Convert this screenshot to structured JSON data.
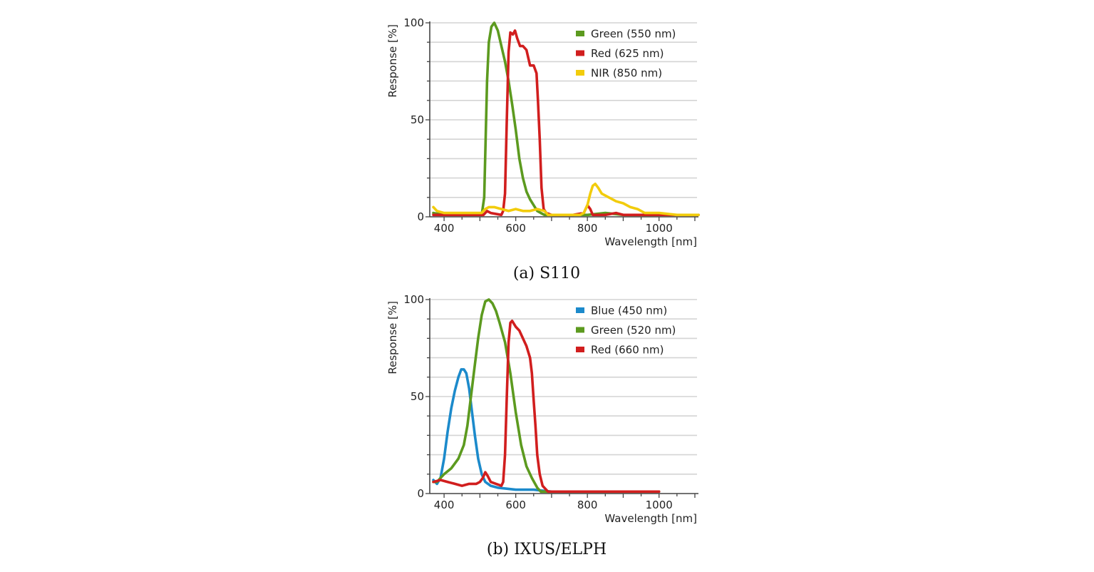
{
  "chart_data": [
    {
      "type": "line",
      "caption": "(a)  S110",
      "xlabel": "Wavelength [nm]",
      "ylabel": "Response [%]",
      "xlim": [
        360,
        1110
      ],
      "ylim": [
        0,
        100
      ],
      "xticks": [
        400,
        600,
        800,
        1000
      ],
      "yticks": [
        0,
        50,
        100
      ],
      "legend_position": "top-right",
      "grid": "horizontal",
      "series": [
        {
          "name": "Green (550 nm)",
          "color": "#5c9a1f",
          "points": [
            [
              370,
              2
            ],
            [
              400,
              1
            ],
            [
              450,
              1
            ],
            [
              490,
              1
            ],
            [
              505,
              1
            ],
            [
              512,
              10
            ],
            [
              516,
              40
            ],
            [
              520,
              70
            ],
            [
              525,
              90
            ],
            [
              532,
              98
            ],
            [
              540,
              100
            ],
            [
              550,
              96
            ],
            [
              560,
              88
            ],
            [
              570,
              80
            ],
            [
              580,
              70
            ],
            [
              590,
              58
            ],
            [
              600,
              45
            ],
            [
              610,
              30
            ],
            [
              620,
              20
            ],
            [
              630,
              13
            ],
            [
              640,
              9
            ],
            [
              650,
              6
            ],
            [
              660,
              3
            ],
            [
              670,
              2
            ],
            [
              680,
              1
            ],
            [
              700,
              1
            ],
            [
              750,
              1
            ],
            [
              800,
              1
            ],
            [
              850,
              2
            ],
            [
              900,
              1
            ],
            [
              950,
              1
            ],
            [
              1000,
              1
            ],
            [
              1050,
              1
            ],
            [
              1110,
              1
            ]
          ]
        },
        {
          "name": "Red (625 nm)",
          "color": "#d11e1e",
          "points": [
            [
              370,
              1
            ],
            [
              480,
              1
            ],
            [
              510,
              1
            ],
            [
              520,
              3
            ],
            [
              530,
              2
            ],
            [
              560,
              1
            ],
            [
              565,
              3
            ],
            [
              570,
              12
            ],
            [
              575,
              50
            ],
            [
              580,
              85
            ],
            [
              585,
              95
            ],
            [
              592,
              94
            ],
            [
              598,
              96
            ],
            [
              604,
              92
            ],
            [
              612,
              88
            ],
            [
              620,
              88
            ],
            [
              630,
              86
            ],
            [
              640,
              78
            ],
            [
              650,
              78
            ],
            [
              658,
              74
            ],
            [
              662,
              60
            ],
            [
              667,
              40
            ],
            [
              672,
              15
            ],
            [
              678,
              4
            ],
            [
              685,
              2
            ],
            [
              700,
              1
            ],
            [
              760,
              1
            ],
            [
              790,
              2
            ],
            [
              800,
              6
            ],
            [
              808,
              4
            ],
            [
              815,
              1
            ],
            [
              850,
              1
            ],
            [
              880,
              2
            ],
            [
              900,
              1
            ],
            [
              1000,
              1
            ],
            [
              1110,
              1
            ]
          ]
        },
        {
          "name": "NIR (850 nm)",
          "color": "#f2cc0c",
          "points": [
            [
              370,
              5
            ],
            [
              380,
              3
            ],
            [
              400,
              2
            ],
            [
              450,
              2
            ],
            [
              490,
              2
            ],
            [
              505,
              2
            ],
            [
              515,
              4
            ],
            [
              525,
              5
            ],
            [
              540,
              5
            ],
            [
              560,
              4
            ],
            [
              580,
              3
            ],
            [
              600,
              4
            ],
            [
              620,
              3
            ],
            [
              640,
              3
            ],
            [
              660,
              4
            ],
            [
              680,
              3
            ],
            [
              690,
              1
            ],
            [
              720,
              1
            ],
            [
              780,
              1
            ],
            [
              790,
              2
            ],
            [
              800,
              6
            ],
            [
              808,
              12
            ],
            [
              815,
              16
            ],
            [
              822,
              17
            ],
            [
              830,
              15
            ],
            [
              840,
              12
            ],
            [
              860,
              10
            ],
            [
              880,
              8
            ],
            [
              900,
              7
            ],
            [
              920,
              5
            ],
            [
              940,
              4
            ],
            [
              960,
              2
            ],
            [
              1000,
              2
            ],
            [
              1050,
              1
            ],
            [
              1110,
              1
            ]
          ]
        }
      ]
    },
    {
      "type": "line",
      "caption": "(b)  IXUS/ELPH",
      "xlabel": "Wavelength [nm]",
      "ylabel": "Response [%]",
      "xlim": [
        360,
        1110
      ],
      "ylim": [
        0,
        100
      ],
      "xticks": [
        400,
        600,
        800,
        1000
      ],
      "yticks": [
        0,
        50,
        100
      ],
      "legend_position": "top-right",
      "grid": "horizontal",
      "series": [
        {
          "name": "Blue (450 nm)",
          "color": "#1c8acb",
          "points": [
            [
              370,
              7
            ],
            [
              380,
              5
            ],
            [
              390,
              8
            ],
            [
              400,
              18
            ],
            [
              410,
              32
            ],
            [
              420,
              44
            ],
            [
              430,
              53
            ],
            [
              440,
              60
            ],
            [
              448,
              64
            ],
            [
              455,
              64
            ],
            [
              462,
              62
            ],
            [
              470,
              54
            ],
            [
              478,
              42
            ],
            [
              486,
              30
            ],
            [
              495,
              18
            ],
            [
              505,
              10
            ],
            [
              515,
              6
            ],
            [
              530,
              4
            ],
            [
              550,
              3
            ],
            [
              600,
              2
            ],
            [
              650,
              2
            ],
            [
              700,
              1
            ],
            [
              800,
              1
            ],
            [
              900,
              1
            ],
            [
              1000,
              1
            ]
          ]
        },
        {
          "name": "Green (520 nm)",
          "color": "#5c9a1f",
          "points": [
            [
              370,
              6
            ],
            [
              380,
              6
            ],
            [
              390,
              8
            ],
            [
              400,
              10
            ],
            [
              420,
              13
            ],
            [
              440,
              18
            ],
            [
              455,
              25
            ],
            [
              465,
              35
            ],
            [
              475,
              50
            ],
            [
              485,
              65
            ],
            [
              495,
              80
            ],
            [
              505,
              92
            ],
            [
              515,
              99
            ],
            [
              525,
              100
            ],
            [
              535,
              98
            ],
            [
              545,
              94
            ],
            [
              555,
              88
            ],
            [
              570,
              78
            ],
            [
              585,
              62
            ],
            [
              600,
              42
            ],
            [
              615,
              25
            ],
            [
              630,
              14
            ],
            [
              645,
              8
            ],
            [
              660,
              3
            ],
            [
              670,
              1
            ],
            [
              700,
              1
            ],
            [
              800,
              1
            ],
            [
              900,
              1
            ],
            [
              1000,
              1
            ]
          ]
        },
        {
          "name": "Red (660 nm)",
          "color": "#d11e1e",
          "points": [
            [
              370,
              6
            ],
            [
              390,
              7
            ],
            [
              410,
              6
            ],
            [
              430,
              5
            ],
            [
              450,
              4
            ],
            [
              470,
              5
            ],
            [
              490,
              5
            ],
            [
              500,
              6
            ],
            [
              508,
              8
            ],
            [
              515,
              11
            ],
            [
              522,
              9
            ],
            [
              530,
              6
            ],
            [
              545,
              5
            ],
            [
              560,
              4
            ],
            [
              565,
              6
            ],
            [
              570,
              20
            ],
            [
              575,
              50
            ],
            [
              580,
              78
            ],
            [
              585,
              88
            ],
            [
              590,
              89
            ],
            [
              600,
              86
            ],
            [
              610,
              84
            ],
            [
              620,
              80
            ],
            [
              630,
              76
            ],
            [
              640,
              70
            ],
            [
              645,
              62
            ],
            [
              650,
              48
            ],
            [
              655,
              35
            ],
            [
              660,
              20
            ],
            [
              667,
              10
            ],
            [
              675,
              4
            ],
            [
              690,
              1
            ],
            [
              1000,
              1
            ]
          ]
        }
      ]
    }
  ]
}
